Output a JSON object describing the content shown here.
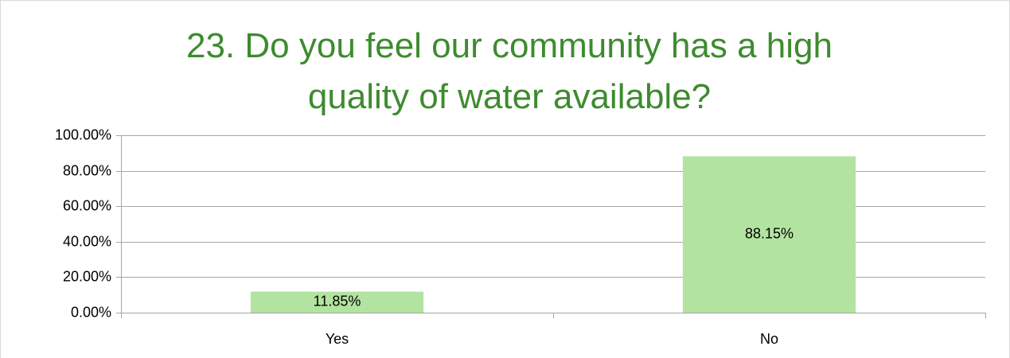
{
  "chart_data": {
    "type": "bar",
    "title": "23. Do you feel our community has a high quality of water available?",
    "categories": [
      "Yes",
      "No"
    ],
    "values": [
      11.85,
      88.15
    ],
    "value_labels": [
      "11.85%",
      "88.15%"
    ],
    "color": "#b3e3a0",
    "ylim": [
      0,
      100
    ],
    "yticks": [
      {
        "value": 0,
        "label": "0.00%"
      },
      {
        "value": 20,
        "label": "20.00%"
      },
      {
        "value": 40,
        "label": "40.00%"
      },
      {
        "value": 60,
        "label": "60.00%"
      },
      {
        "value": 80,
        "label": "80.00%"
      },
      {
        "value": 100,
        "label": "100.00%"
      }
    ],
    "grid": true
  }
}
